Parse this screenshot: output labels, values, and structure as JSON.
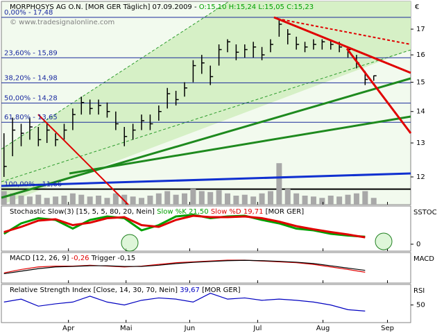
{
  "chart_data": [
    {
      "type": "ohlc",
      "title": "MORPHOSYS AG O.N. [MOR GER  Täglich] 07.09.2009 -",
      "ohlc_summary": "O:15,10 H:15,24 L:15,05 C:15,23",
      "watermark": "© www.tradesignalonline.com",
      "currency": "€",
      "log": true,
      "ylim": [
        11.24,
        18.15
      ],
      "yticks": [
        12,
        13,
        14,
        15,
        16,
        17
      ],
      "xlim": [
        -0.3,
        47.3
      ],
      "xticks": [
        {
          "value": 7.5,
          "label": "Apr"
        },
        {
          "value": 14.2,
          "label": "Mai"
        },
        {
          "value": 21.6,
          "label": "Jun"
        },
        {
          "value": 29.5,
          "label": "Jul"
        },
        {
          "value": 37.1,
          "label": "Aug"
        },
        {
          "value": 44.6,
          "label": "Sep"
        }
      ],
      "color": "#000000",
      "high": [
        13.3,
        13.8,
        13.6,
        13.8,
        13.5,
        13.6,
        13.3,
        13.6,
        14.1,
        14.5,
        14.4,
        14.4,
        14.3,
        14.0,
        13.5,
        13.6,
        13.9,
        13.9,
        14.2,
        14.8,
        14.7,
        15.0,
        15.8,
        16.0,
        15.6,
        16.4,
        16.6,
        16.4,
        16.4,
        16.5,
        16.3,
        16.6,
        17.4,
        17.0,
        16.7,
        16.5,
        16.6,
        16.6,
        16.6,
        16.5,
        16.3,
        16.0,
        15.4,
        15.24
      ],
      "low": [
        12.0,
        12.6,
        12.9,
        13.1,
        12.9,
        13.0,
        12.9,
        13.1,
        13.4,
        13.9,
        13.9,
        13.9,
        13.8,
        13.4,
        12.9,
        13.1,
        13.4,
        13.4,
        13.7,
        14.1,
        14.2,
        14.5,
        15.0,
        15.3,
        14.9,
        15.6,
        16.1,
        15.8,
        15.9,
        15.9,
        15.8,
        16.1,
        16.7,
        16.4,
        16.2,
        16.1,
        16.2,
        16.2,
        16.2,
        16.1,
        15.9,
        15.5,
        14.9,
        15.05
      ],
      "close": [
        12.3,
        13.4,
        13.3,
        13.5,
        13.1,
        13.4,
        13.1,
        13.4,
        13.9,
        14.3,
        14.1,
        14.2,
        14.0,
        13.6,
        13.2,
        13.4,
        13.7,
        13.6,
        14.0,
        14.6,
        14.4,
        14.8,
        15.6,
        15.7,
        15.2,
        16.2,
        16.5,
        16.1,
        16.2,
        16.3,
        16.0,
        16.4,
        17.2,
        16.8,
        16.4,
        16.3,
        16.4,
        16.5,
        16.4,
        16.3,
        16.2,
        15.7,
        15.1,
        15.23
      ],
      "volume": {
        "ylim": [
          0,
          100
        ],
        "color": "#a8a8a8",
        "values": [
          30,
          25,
          20,
          18,
          22,
          15,
          18,
          20,
          25,
          22,
          18,
          20,
          15,
          25,
          22,
          18,
          15,
          20,
          25,
          30,
          22,
          25,
          35,
          30,
          28,
          32,
          25,
          20,
          22,
          18,
          25,
          30,
          92,
          35,
          25,
          20,
          18,
          15,
          20,
          18,
          22,
          25,
          30,
          15
        ]
      },
      "fib_levels": [
        {
          "label": "0,00% - 17,48",
          "value": 17.48
        },
        {
          "label": "23,60% - 15,89",
          "value": 15.89
        },
        {
          "label": "38,20% - 14,98",
          "value": 14.98
        },
        {
          "label": "50,00% - 14,28",
          "value": 14.28
        },
        {
          "label": "61,80% - 13,65",
          "value": 13.65
        },
        {
          "label": "100,00% - 11,66",
          "value": 11.66
        }
      ]
    },
    {
      "type": "line",
      "title": "Stochastic Slow(3) [15, 5, 5, 80, 20, Nein]",
      "source": "[MOR GER]",
      "label": "SSTOC",
      "x": [
        0,
        2,
        4,
        6,
        8,
        10,
        12,
        14,
        16,
        18,
        20,
        22,
        24,
        26,
        28,
        30,
        32,
        34,
        36,
        38,
        40,
        42
      ],
      "ylim": [
        -20,
        110
      ],
      "yticks": [
        0
      ],
      "series": [
        {
          "name": "Slow %K",
          "color": "#00a000",
          "last_value_label": "21,50",
          "values": [
            30,
            60,
            75,
            70,
            45,
            70,
            80,
            75,
            40,
            55,
            80,
            85,
            75,
            80,
            82,
            70,
            60,
            45,
            40,
            30,
            25,
            21.5
          ]
        },
        {
          "name": "Slow %D",
          "color": "#e00000",
          "last_value_label": "19,71",
          "values": [
            35,
            50,
            68,
            72,
            55,
            62,
            75,
            78,
            55,
            50,
            70,
            82,
            78,
            78,
            80,
            75,
            65,
            52,
            43,
            35,
            28,
            19.71
          ]
        }
      ]
    },
    {
      "type": "line",
      "title": "MACD [12, 26, 9]",
      "label": "MACD",
      "x": [
        0,
        2,
        4,
        6,
        8,
        10,
        12,
        14,
        16,
        18,
        20,
        22,
        24,
        26,
        28,
        30,
        32,
        34,
        36,
        38,
        40,
        42
      ],
      "ylim": [
        -0.9,
        0.9
      ],
      "yticks": [],
      "series": [
        {
          "color": "#e00000",
          "last_value_label": "-0,26",
          "values": [
            -0.3,
            -0.1,
            0.05,
            0.1,
            0.1,
            0.15,
            0.1,
            0.05,
            0.1,
            0.2,
            0.3,
            0.35,
            0.4,
            0.45,
            0.45,
            0.4,
            0.35,
            0.3,
            0.2,
            0.05,
            -0.1,
            -0.26
          ]
        },
        {
          "name": "Trigger",
          "color": "#000000",
          "last_value_label": "-0,15",
          "values": [
            -0.35,
            -0.2,
            -0.05,
            0.05,
            0.08,
            0.12,
            0.12,
            0.08,
            0.08,
            0.15,
            0.25,
            0.32,
            0.37,
            0.42,
            0.44,
            0.42,
            0.38,
            0.33,
            0.25,
            0.12,
            -0.02,
            -0.15
          ]
        }
      ]
    },
    {
      "type": "line",
      "title": "Relative Strength Index [Close, 14, 30, 70, Nein]",
      "source": "[MOR GER]",
      "label": "RSI",
      "x": [
        0,
        2,
        4,
        6,
        8,
        10,
        12,
        14,
        16,
        18,
        20,
        22,
        24,
        26,
        28,
        30,
        32,
        34,
        36,
        38,
        40,
        42
      ],
      "ylim": [
        20,
        85
      ],
      "yticks": [
        50
      ],
      "series": [
        {
          "color": "#0000c0",
          "last_value_label": "39,67",
          "values": [
            55,
            60,
            48,
            52,
            55,
            65,
            55,
            50,
            58,
            62,
            60,
            55,
            70,
            60,
            62,
            58,
            60,
            58,
            55,
            50,
            42,
            39.67
          ]
        }
      ]
    }
  ]
}
